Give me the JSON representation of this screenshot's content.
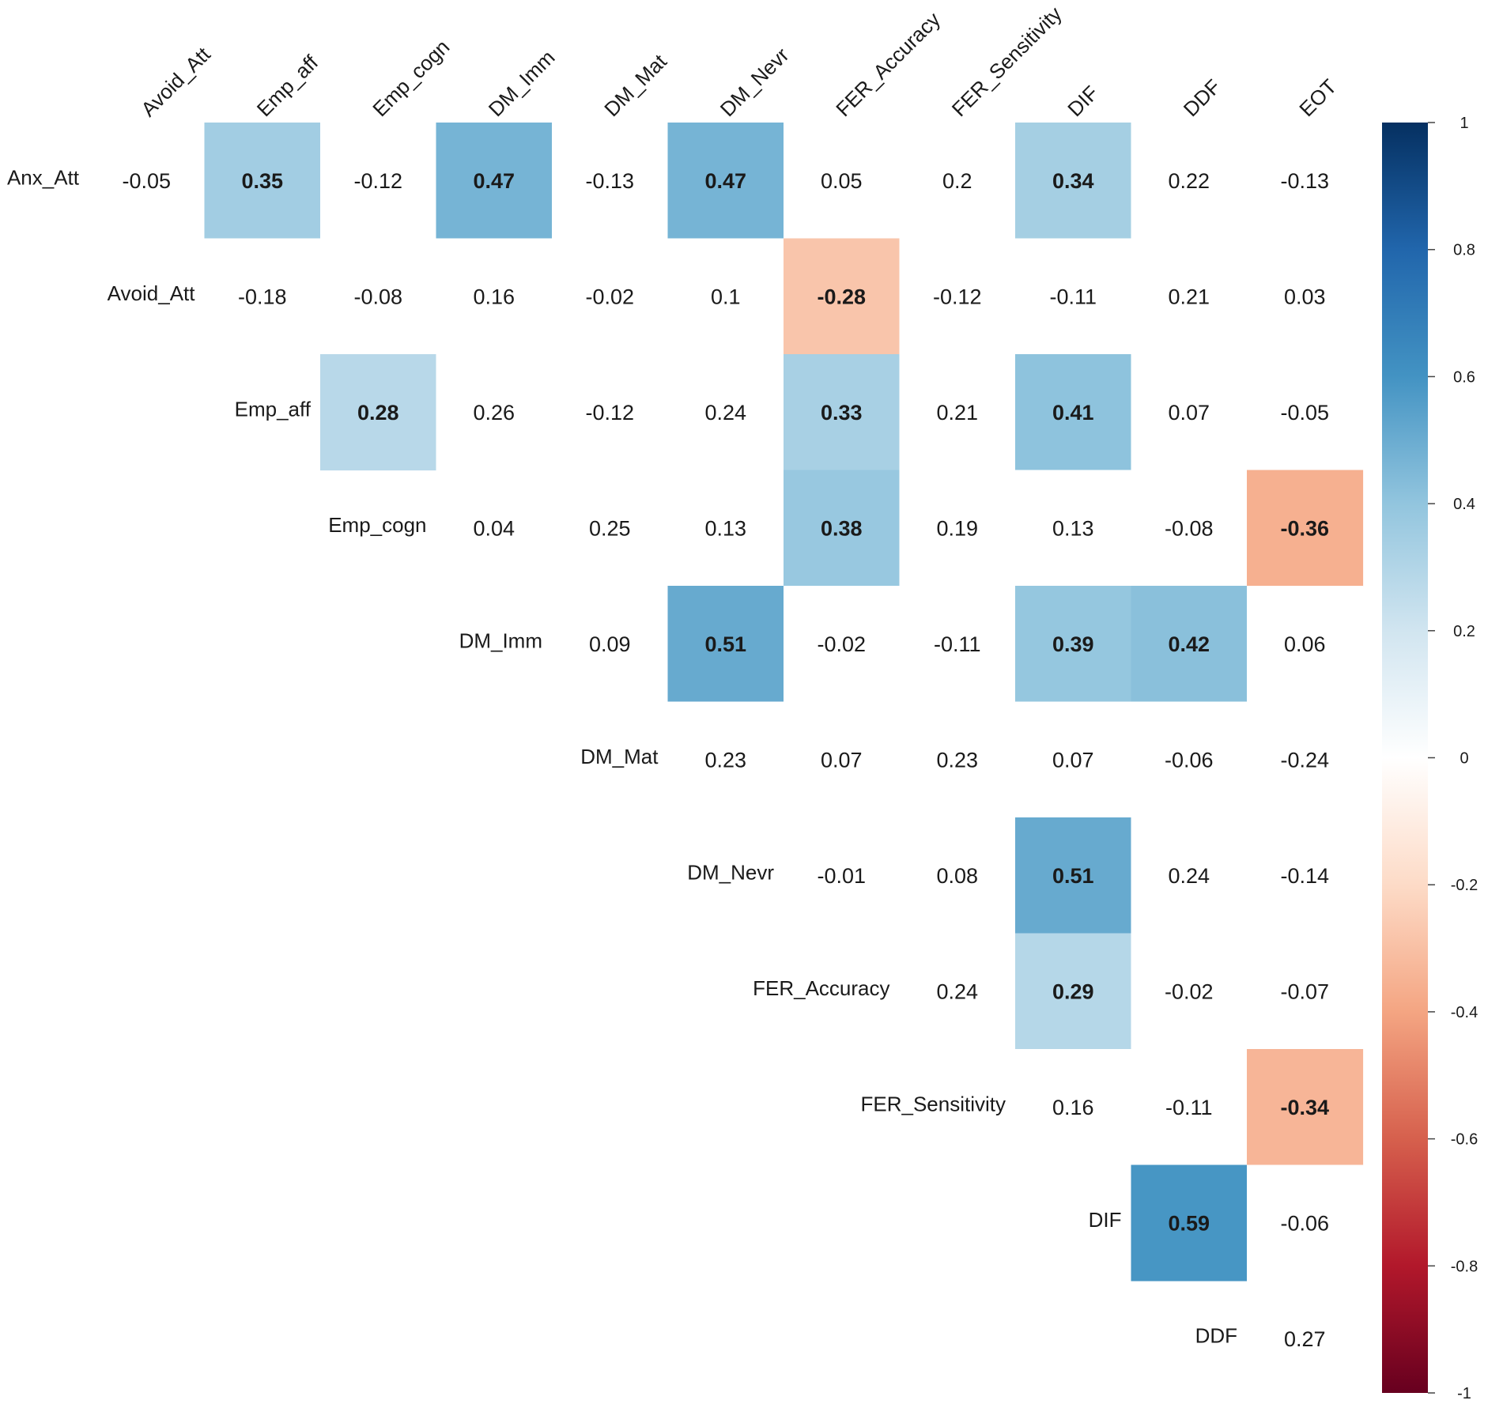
{
  "colors": {
    "gradient_stops": [
      {
        "v": -1.0,
        "c": "#67001f"
      },
      {
        "v": -0.8,
        "c": "#b2182b"
      },
      {
        "v": -0.6,
        "c": "#d6604d"
      },
      {
        "v": -0.4,
        "c": "#f4a582"
      },
      {
        "v": -0.2,
        "c": "#fddbc7"
      },
      {
        "v": 0.0,
        "c": "#ffffff"
      },
      {
        "v": 0.2,
        "c": "#d1e5f0"
      },
      {
        "v": 0.4,
        "c": "#92c5de"
      },
      {
        "v": 0.6,
        "c": "#4393c3"
      },
      {
        "v": 0.8,
        "c": "#2166ac"
      },
      {
        "v": 1.0,
        "c": "#053061"
      }
    ]
  },
  "chart_data": {
    "type": "heatmap",
    "title": "",
    "row_labels": [
      "Anx_Att",
      "Avoid_Att",
      "Emp_aff",
      "Emp_cogn",
      "DM_Imm",
      "DM_Mat",
      "DM_Nevr",
      "FER_Accuracy",
      "FER_Sensitivity",
      "DIF",
      "DDF"
    ],
    "col_labels": [
      "Avoid_Att",
      "Emp_aff",
      "Emp_cogn",
      "DM_Imm",
      "DM_Mat",
      "DM_Nevr",
      "FER_Accuracy",
      "FER_Sensitivity",
      "DIF",
      "DDF",
      "EOT"
    ],
    "layout": "upper-triangle",
    "significance_threshold": 0.28,
    "values": [
      [
        -0.05,
        0.35,
        -0.12,
        0.47,
        -0.13,
        0.47,
        0.05,
        0.2,
        0.34,
        0.22,
        -0.13
      ],
      [
        null,
        -0.18,
        -0.08,
        0.16,
        -0.02,
        0.1,
        -0.28,
        -0.12,
        -0.11,
        0.21,
        0.03
      ],
      [
        null,
        null,
        0.28,
        0.26,
        -0.12,
        0.24,
        0.33,
        0.21,
        0.41,
        0.07,
        -0.05
      ],
      [
        null,
        null,
        null,
        0.04,
        0.25,
        0.13,
        0.38,
        0.19,
        0.13,
        -0.08,
        -0.36
      ],
      [
        null,
        null,
        null,
        null,
        0.09,
        0.51,
        -0.02,
        -0.11,
        0.39,
        0.42,
        0.06
      ],
      [
        null,
        null,
        null,
        null,
        null,
        0.23,
        0.07,
        0.23,
        0.07,
        -0.06,
        -0.24
      ],
      [
        null,
        null,
        null,
        null,
        null,
        null,
        -0.01,
        0.08,
        0.51,
        0.24,
        -0.14
      ],
      [
        null,
        null,
        null,
        null,
        null,
        null,
        null,
        0.24,
        0.29,
        -0.02,
        -0.07
      ],
      [
        null,
        null,
        null,
        null,
        null,
        null,
        null,
        null,
        0.16,
        -0.11,
        -0.34
      ],
      [
        null,
        null,
        null,
        null,
        null,
        null,
        null,
        null,
        null,
        0.59,
        -0.06
      ],
      [
        null,
        null,
        null,
        null,
        null,
        null,
        null,
        null,
        null,
        null,
        0.27
      ]
    ],
    "colorbar": {
      "range": [
        -1,
        1
      ],
      "ticks": [
        1,
        0.8,
        0.6,
        0.4,
        0.2,
        0,
        -0.2,
        -0.4,
        -0.6,
        -0.8,
        -1
      ],
      "tick_labels": [
        "1",
        "0.8",
        "0.6",
        "0.4",
        "0.2",
        "0",
        "-0.2",
        "-0.4",
        "-0.6",
        "-0.8",
        "-1"
      ],
      "placement": "right"
    }
  }
}
